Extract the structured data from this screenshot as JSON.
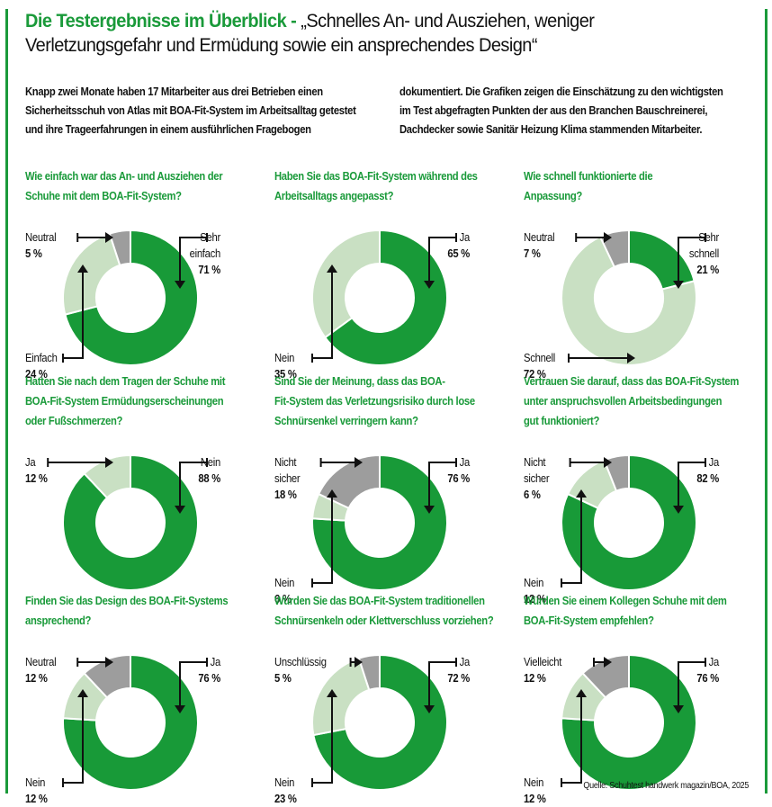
{
  "header": {
    "title_green": "Die Testergebnisse im Überblick - ",
    "title_rest_line1": "„Schnelles An- und Ausziehen, weniger",
    "title_line2": "Verletzungsgefahr und Ermüdung sowie ein ansprechendes Design“"
  },
  "intro": {
    "left": [
      "Knapp zwei Monate haben 17 Mitarbeiter aus drei Betrieben einen",
      "Sicherheitsschuh von Atlas mit BOA-Fit-System im Arbeitsalltag getestet",
      "und ihre Trageerfahrungen in einem ausführlichen Fragebogen"
    ],
    "right": [
      "dokumentiert. Die Grafiken zeigen die Einschätzung zu den wichtigsten",
      "im Test abgefragten Punkten der aus den Branchen Bauschreinerei,",
      "Dachdecker sowie Sanitär Heizung Klima stammenden Mitarbeiter."
    ]
  },
  "colors": {
    "accent_green": "#1a9a3a",
    "dark_green": "#189a38",
    "light_green": "#c9e0c3",
    "gray": "#9d9d9d"
  },
  "chart_data": [
    {
      "type": "pie",
      "title": "Wie einfach war das An- und Ausziehen der Schuhe mit dem BOA-Fit-System?",
      "title_lines": [
        "Wie einfach war das An- und Ausziehen der",
        "Schuhe mit dem BOA-Fit-System?"
      ],
      "slices": [
        {
          "label": "Sehr einfach",
          "label_lines": [
            "Sehr",
            "einfach"
          ],
          "value": 71,
          "pct": "71 %",
          "color": "dark_green",
          "pos": "top-right"
        },
        {
          "label": "Einfach",
          "label_lines": [
            "Einfach"
          ],
          "value": 24,
          "pct": "24 %",
          "color": "light_green",
          "pos": "bottom-left"
        },
        {
          "label": "Neutral",
          "label_lines": [
            "Neutral"
          ],
          "value": 5,
          "pct": "5 %",
          "color": "gray",
          "pos": "top-left"
        }
      ]
    },
    {
      "type": "pie",
      "title": "Haben Sie das BOA-Fit-System während des Arbeitsalltags angepasst?",
      "title_lines": [
        "Haben Sie das BOA-Fit-System während des",
        "Arbeitsalltags angepasst?"
      ],
      "slices": [
        {
          "label": "Ja",
          "label_lines": [
            "Ja"
          ],
          "value": 65,
          "pct": "65 %",
          "color": "dark_green",
          "pos": "top-right"
        },
        {
          "label": "Nein",
          "label_lines": [
            "Nein"
          ],
          "value": 35,
          "pct": "35 %",
          "color": "light_green",
          "pos": "bottom-left"
        }
      ]
    },
    {
      "type": "pie",
      "title": "Wie schnell funktionierte die Anpassung?",
      "title_lines": [
        "Wie schnell funktionierte die",
        "Anpassung?"
      ],
      "slices": [
        {
          "label": "Sehr schnell",
          "label_lines": [
            "Sehr",
            "schnell"
          ],
          "value": 21,
          "pct": "21 %",
          "color": "dark_green",
          "pos": "top-right"
        },
        {
          "label": "Schnell",
          "label_lines": [
            "Schnell"
          ],
          "value": 72,
          "pct": "72 %",
          "color": "light_green",
          "pos": "bottom-left-horizontal"
        },
        {
          "label": "Neutral",
          "label_lines": [
            "Neutral"
          ],
          "value": 7,
          "pct": "7 %",
          "color": "gray",
          "pos": "top-left"
        }
      ]
    },
    {
      "type": "pie",
      "title": "Hatten Sie nach dem Tragen der Schuhe mit BOA-Fit-System Ermüdungserscheinungen oder Fußschmerzen?",
      "title_lines": [
        "Hatten Sie nach dem Tragen der Schuhe mit",
        "BOA-Fit-System Ermüdungserscheinungen",
        "oder Fußschmerzen?"
      ],
      "slices": [
        {
          "label": "Nein",
          "label_lines": [
            "Nein"
          ],
          "value": 88,
          "pct": "88 %",
          "color": "dark_green",
          "pos": "top-right"
        },
        {
          "label": "Ja",
          "label_lines": [
            "Ja"
          ],
          "value": 12,
          "pct": "12 %",
          "color": "light_green",
          "pos": "top-left"
        }
      ]
    },
    {
      "type": "pie",
      "title": "Sind Sie der Meinung, dass das BOA-Fit-System das Verletzungsrisiko durch lose Schnürsenkel verringern kann?",
      "title_lines": [
        "Sind Sie der Meinung, dass das BOA-",
        "Fit-System das Verletzungsrisiko durch lose",
        "Schnürsenkel verringern kann?"
      ],
      "slices": [
        {
          "label": "Ja",
          "label_lines": [
            "Ja"
          ],
          "value": 76,
          "pct": "76 %",
          "color": "dark_green",
          "pos": "top-right"
        },
        {
          "label": "Nein",
          "label_lines": [
            "Nein"
          ],
          "value": 6,
          "pct": "6 %",
          "color": "light_green",
          "pos": "bottom-left"
        },
        {
          "label": "Nicht sicher",
          "label_lines": [
            "Nicht",
            "sicher"
          ],
          "value": 18,
          "pct": "18 %",
          "color": "gray",
          "pos": "top-left"
        }
      ]
    },
    {
      "type": "pie",
      "title": "Vertrauen Sie darauf, dass das BOA-Fit-System unter anspruchsvollen Arbeitsbedingungen gut funktioniert?",
      "title_lines": [
        "Vertrauen Sie darauf, dass das BOA-Fit-System",
        "unter anspruchsvollen Arbeitsbedingungen",
        "gut funktioniert?"
      ],
      "slices": [
        {
          "label": "Ja",
          "label_lines": [
            "Ja"
          ],
          "value": 82,
          "pct": "82 %",
          "color": "dark_green",
          "pos": "top-right"
        },
        {
          "label": "Nein",
          "label_lines": [
            "Nein"
          ],
          "value": 12,
          "pct": "12 %",
          "color": "light_green",
          "pos": "bottom-left"
        },
        {
          "label": "Nicht sicher",
          "label_lines": [
            "Nicht",
            "sicher"
          ],
          "value": 6,
          "pct": "6 %",
          "color": "gray",
          "pos": "top-left"
        }
      ]
    },
    {
      "type": "pie",
      "title": "Finden Sie das Design des BOA-Fit-Systems ansprechend?",
      "title_lines": [
        "Finden Sie das Design des BOA-Fit-Systems",
        "ansprechend?"
      ],
      "slices": [
        {
          "label": "Ja",
          "label_lines": [
            "Ja"
          ],
          "value": 76,
          "pct": "76 %",
          "color": "dark_green",
          "pos": "top-right"
        },
        {
          "label": "Nein",
          "label_lines": [
            "Nein"
          ],
          "value": 12,
          "pct": "12 %",
          "color": "light_green",
          "pos": "bottom-left"
        },
        {
          "label": "Neutral",
          "label_lines": [
            "Neutral"
          ],
          "value": 12,
          "pct": "12 %",
          "color": "gray",
          "pos": "top-left"
        }
      ]
    },
    {
      "type": "pie",
      "title": "Würden Sie das BOA-Fit-System traditionellen Schnürsenkeln oder Klettverschluss vorziehen?",
      "title_lines": [
        "Würden Sie das BOA-Fit-System traditionellen",
        "Schnürsenkeln oder Klettverschluss vorziehen?"
      ],
      "slices": [
        {
          "label": "Ja",
          "label_lines": [
            "Ja"
          ],
          "value": 72,
          "pct": "72 %",
          "color": "dark_green",
          "pos": "top-right"
        },
        {
          "label": "Nein",
          "label_lines": [
            "Nein"
          ],
          "value": 23,
          "pct": "23 %",
          "color": "light_green",
          "pos": "bottom-left"
        },
        {
          "label": "Unschlüssig",
          "label_lines": [
            "Unschlüssig"
          ],
          "value": 5,
          "pct": "5 %",
          "color": "gray",
          "pos": "top-left"
        }
      ]
    },
    {
      "type": "pie",
      "title": "Würden Sie einem Kollegen Schuhe mit dem BOA-Fit-System empfehlen?",
      "title_lines": [
        "Würden Sie einem Kollegen Schuhe mit dem",
        "BOA-Fit-System empfehlen?"
      ],
      "slices": [
        {
          "label": "Ja",
          "label_lines": [
            "Ja"
          ],
          "value": 76,
          "pct": "76 %",
          "color": "dark_green",
          "pos": "top-right"
        },
        {
          "label": "Nein",
          "label_lines": [
            "Nein"
          ],
          "value": 12,
          "pct": "12 %",
          "color": "light_green",
          "pos": "bottom-left"
        },
        {
          "label": "Vielleicht",
          "label_lines": [
            "Vielleicht"
          ],
          "value": 12,
          "pct": "12 %",
          "color": "gray",
          "pos": "top-left"
        }
      ]
    }
  ],
  "source": "Quelle: Schuhtest handwerk magazin/BOA, 2025"
}
